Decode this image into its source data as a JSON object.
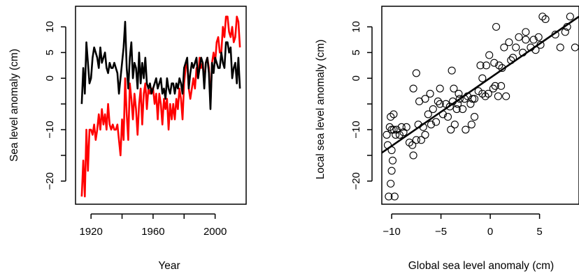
{
  "chart_data": [
    {
      "type": "line",
      "title": "",
      "xlabel": "Year",
      "ylabel": "Sea level anomaly (cm)",
      "xlim": [
        1910,
        2020
      ],
      "ylim": [
        -24.5,
        14
      ],
      "xticks": [
        1920,
        1960,
        2000
      ],
      "yticks": [
        10,
        5,
        0,
        -10,
        -20
      ],
      "xtick_labels": [
        "1920",
        "1960",
        "2000"
      ],
      "ytick_labels": [
        "10",
        "5",
        "0",
        "−10",
        "−20"
      ],
      "grid": false,
      "legend": null,
      "series": [
        {
          "color": "#000000",
          "x": [
            1914,
            1915,
            1916,
            1917,
            1918,
            1919,
            1920,
            1921,
            1922,
            1923,
            1924,
            1925,
            1926,
            1927,
            1928,
            1929,
            1930,
            1931,
            1932,
            1933,
            1934,
            1935,
            1936,
            1937,
            1938,
            1939,
            1940,
            1941,
            1942,
            1943,
            1944,
            1945,
            1946,
            1947,
            1948,
            1949,
            1950,
            1951,
            1952,
            1953,
            1954,
            1955,
            1956,
            1957,
            1958,
            1959,
            1960,
            1961,
            1962,
            1963,
            1964,
            1965,
            1966,
            1967,
            1968,
            1969,
            1970,
            1971,
            1972,
            1973,
            1974,
            1975,
            1976,
            1977,
            1978,
            1979,
            1980,
            1981,
            1982,
            1983,
            1984,
            1985,
            1986,
            1987,
            1988,
            1989,
            1990,
            1991,
            1992,
            1993,
            1994,
            1995,
            1996,
            1997,
            1998,
            1999,
            2000,
            2001,
            2002,
            2003,
            2004,
            2005,
            2006,
            2007,
            2008,
            2009,
            2010,
            2011,
            2012,
            2013,
            2014,
            2015,
            2016
          ],
          "y": [
            -5,
            2,
            -3,
            7,
            3,
            -1,
            0,
            4,
            6,
            5,
            4,
            2,
            6,
            3,
            4,
            5,
            2,
            1,
            3,
            2,
            2,
            3,
            2,
            1,
            -3,
            0,
            3,
            6,
            11,
            2,
            -2,
            4,
            7,
            0,
            3,
            2,
            -2,
            5,
            -1,
            3,
            0,
            4,
            -1,
            -2,
            -1,
            -3,
            -2,
            -1,
            0,
            -2,
            -1,
            0,
            -3,
            -2,
            -4,
            0,
            -2,
            -3,
            -1,
            -1,
            -3,
            -1,
            -2,
            0,
            -1,
            -3,
            2,
            3,
            4,
            -2,
            1,
            3,
            2,
            3,
            4,
            0,
            2,
            4,
            3,
            -2,
            3,
            4,
            1,
            -6,
            3,
            1,
            4,
            3,
            2,
            2,
            5,
            3,
            2,
            7,
            7,
            5,
            6,
            0,
            2,
            3,
            -1,
            4,
            -2
          ]
        },
        {
          "color": "#ff0000",
          "x": [
            1914,
            1915,
            1916,
            1917,
            1918,
            1919,
            1920,
            1921,
            1922,
            1923,
            1924,
            1925,
            1926,
            1927,
            1928,
            1929,
            1930,
            1931,
            1932,
            1933,
            1934,
            1935,
            1936,
            1937,
            1938,
            1939,
            1940,
            1941,
            1942,
            1943,
            1944,
            1945,
            1946,
            1947,
            1948,
            1949,
            1950,
            1951,
            1952,
            1953,
            1954,
            1955,
            1956,
            1957,
            1958,
            1959,
            1960,
            1961,
            1962,
            1963,
            1964,
            1965,
            1966,
            1967,
            1968,
            1969,
            1970,
            1971,
            1972,
            1973,
            1974,
            1975,
            1976,
            1977,
            1978,
            1979,
            1980,
            1981,
            1982,
            1983,
            1984,
            1985,
            1986,
            1987,
            1988,
            1989,
            1990,
            1991,
            1992,
            1993,
            1994,
            1995,
            1996,
            1997,
            1998,
            1999,
            2000,
            2001,
            2002,
            2003,
            2004,
            2005,
            2006,
            2007,
            2008,
            2009,
            2010,
            2011,
            2012,
            2013,
            2014,
            2015,
            2016
          ],
          "y": [
            -23,
            -16,
            -23,
            -10,
            -18,
            -10,
            -10,
            -11,
            -9,
            -12,
            -10,
            -7,
            -10,
            -6,
            -9,
            -7,
            -10,
            -5,
            -9,
            -10,
            -9,
            -10,
            -10,
            -9,
            -12,
            -15,
            -8,
            -12,
            0,
            -7,
            -12,
            -1,
            -4,
            -8,
            -3,
            -6,
            -11,
            -5,
            -2,
            -9,
            -3,
            -1,
            -6,
            -2,
            -3,
            -2,
            -2,
            -5,
            -3,
            -8,
            -3,
            -5,
            -9,
            -4,
            -6,
            -4,
            -10,
            -5,
            -8,
            -5,
            -8,
            -4,
            -6,
            -2,
            -4,
            -8,
            -1,
            2,
            3,
            -2,
            -4,
            -2,
            0,
            -2,
            2,
            0,
            4,
            2,
            3,
            -1,
            3,
            4,
            2,
            -5,
            3,
            5,
            3,
            7,
            8,
            5,
            5,
            10,
            8,
            12,
            12,
            9,
            8,
            10,
            7,
            8,
            12,
            11,
            6
          ]
        }
      ]
    },
    {
      "type": "scatter",
      "title": "",
      "xlabel": "Global sea level anomaly (cm)",
      "ylabel": "Local sea level anomaly (cm)",
      "xlim": [
        -11,
        9
      ],
      "ylim": [
        -24.5,
        14
      ],
      "xticks": [
        -10,
        -5,
        0,
        5
      ],
      "yticks": [
        10,
        5,
        0,
        -10,
        -20
      ],
      "xtick_labels": [
        "−10",
        "−5",
        "0",
        "5"
      ],
      "ytick_labels": [
        "10",
        "5",
        "0",
        "−10",
        "−20"
      ],
      "grid": false,
      "legend": null,
      "marker": "open-circle",
      "fit_line": {
        "color": "#000000",
        "x": [
          -11,
          9
        ],
        "y": [
          -14.5,
          12
        ]
      },
      "points": [
        {
          "x": -10.3,
          "y": -23
        },
        {
          "x": -9.7,
          "y": -23
        },
        {
          "x": -10.1,
          "y": -20.5
        },
        {
          "x": -10,
          "y": -18
        },
        {
          "x": -9.9,
          "y": -16
        },
        {
          "x": -10.4,
          "y": -13
        },
        {
          "x": -10,
          "y": -14
        },
        {
          "x": -9.6,
          "y": -11
        },
        {
          "x": -10.5,
          "y": -11
        },
        {
          "x": -10,
          "y": -10
        },
        {
          "x": -10.2,
          "y": -9.5
        },
        {
          "x": -9.8,
          "y": -10
        },
        {
          "x": -9.5,
          "y": -10
        },
        {
          "x": -9.2,
          "y": -11
        },
        {
          "x": -9,
          "y": -9.5
        },
        {
          "x": -8.8,
          "y": -10.5
        },
        {
          "x": -8.5,
          "y": -9.5
        },
        {
          "x": -8.2,
          "y": -12.5
        },
        {
          "x": -7.9,
          "y": -13
        },
        {
          "x": -7.8,
          "y": -15
        },
        {
          "x": -7.5,
          "y": -12
        },
        {
          "x": -9.8,
          "y": -7
        },
        {
          "x": -10.1,
          "y": -7.5
        },
        {
          "x": -7,
          "y": -12
        },
        {
          "x": -6.6,
          "y": -11
        },
        {
          "x": -7.3,
          "y": -9
        },
        {
          "x": -6.8,
          "y": -9.5
        },
        {
          "x": -6,
          "y": -9
        },
        {
          "x": -5.5,
          "y": -8.5
        },
        {
          "x": -6.3,
          "y": -7
        },
        {
          "x": -5.8,
          "y": -6
        },
        {
          "x": -5.1,
          "y": -5
        },
        {
          "x": -5.3,
          "y": -4.5
        },
        {
          "x": -4.5,
          "y": -5
        },
        {
          "x": -4.1,
          "y": -5.5
        },
        {
          "x": -3.8,
          "y": -4.5
        },
        {
          "x": -3.3,
          "y": -5
        },
        {
          "x": -3.1,
          "y": -4
        },
        {
          "x": -2.6,
          "y": -4
        },
        {
          "x": -2,
          "y": -5
        },
        {
          "x": -1.6,
          "y": -4
        },
        {
          "x": -1.2,
          "y": -2.5
        },
        {
          "x": -0.8,
          "y": -3
        },
        {
          "x": -0.5,
          "y": -3.5
        },
        {
          "x": -0.2,
          "y": -3
        },
        {
          "x": -7.8,
          "y": -2
        },
        {
          "x": -7.5,
          "y": 1
        },
        {
          "x": -7.2,
          "y": -4.5
        },
        {
          "x": -6.6,
          "y": -4
        },
        {
          "x": -6.1,
          "y": -3
        },
        {
          "x": -5.1,
          "y": -2
        },
        {
          "x": -3.7,
          "y": -2
        },
        {
          "x": -3.9,
          "y": 1.5
        },
        {
          "x": -2.8,
          "y": -6
        },
        {
          "x": -3.4,
          "y": -6
        },
        {
          "x": -4,
          "y": -10
        },
        {
          "x": -3.6,
          "y": -9
        },
        {
          "x": -2.5,
          "y": -10
        },
        {
          "x": -1.9,
          "y": -9
        },
        {
          "x": -1.6,
          "y": -7.5
        },
        {
          "x": -4.3,
          "y": -7.5
        },
        {
          "x": -4.8,
          "y": -7
        },
        {
          "x": -0.8,
          "y": 0
        },
        {
          "x": -0.4,
          "y": 2.5
        },
        {
          "x": -0.1,
          "y": 4.5
        },
        {
          "x": 0.4,
          "y": 3
        },
        {
          "x": 0.9,
          "y": 2.5
        },
        {
          "x": 1.2,
          "y": 2
        },
        {
          "x": 1.4,
          "y": 6
        },
        {
          "x": 1.9,
          "y": 7
        },
        {
          "x": 2.3,
          "y": 4
        },
        {
          "x": 2.6,
          "y": 6
        },
        {
          "x": 2.9,
          "y": 8
        },
        {
          "x": 3.3,
          "y": 5
        },
        {
          "x": 3.6,
          "y": 9
        },
        {
          "x": 4.1,
          "y": 6
        },
        {
          "x": 4.6,
          "y": 5.5
        },
        {
          "x": 4.9,
          "y": 8
        },
        {
          "x": 5.3,
          "y": 12
        },
        {
          "x": 5.6,
          "y": 11.5
        },
        {
          "x": 6.6,
          "y": 8.5
        },
        {
          "x": 7.1,
          "y": 6
        },
        {
          "x": 7.6,
          "y": 9
        },
        {
          "x": 7.8,
          "y": 10
        },
        {
          "x": 8.1,
          "y": 12
        },
        {
          "x": 8.6,
          "y": 6
        },
        {
          "x": 0.6,
          "y": 10
        },
        {
          "x": 0.3,
          "y": -2
        },
        {
          "x": 0.8,
          "y": -3.5
        },
        {
          "x": 1.6,
          "y": -3.5
        },
        {
          "x": 1.1,
          "y": -1.5
        },
        {
          "x": 0.5,
          "y": -1.5
        },
        {
          "x": 2.1,
          "y": 3.5
        },
        {
          "x": 3.6,
          "y": 7.5
        },
        {
          "x": 4.4,
          "y": 7.5
        },
        {
          "x": 5.1,
          "y": 6.5
        },
        {
          "x": -1,
          "y": 2.5
        },
        {
          "x": -1.8,
          "y": -4
        },
        {
          "x": -2.3,
          "y": -3.5
        },
        {
          "x": -3.2,
          "y": -3
        }
      ]
    }
  ]
}
